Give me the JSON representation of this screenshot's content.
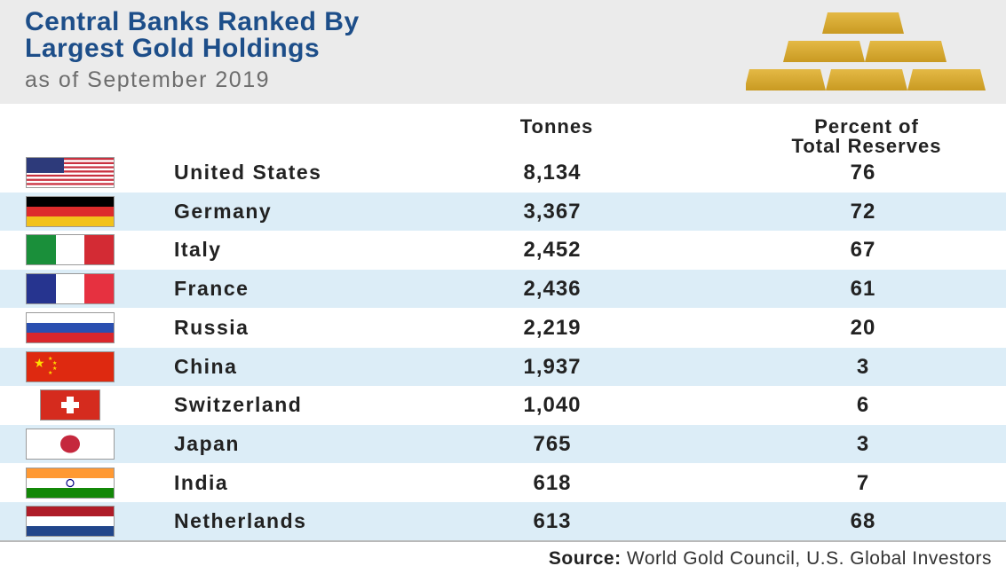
{
  "header": {
    "title_line1": "Central Banks Ranked By",
    "title_line2": "Largest Gold Holdings",
    "subtitle": "as of September 2019"
  },
  "columns": {
    "tonnes": "Tonnes",
    "percent_line1": "Percent of",
    "percent_line2": "Total Reserves"
  },
  "source": {
    "label": "Source:",
    "text": " World Gold Council, U.S. Global Investors"
  },
  "colors": {
    "title": "#1d4e89",
    "gold": "#d4a62e",
    "row_alt": "#dcedf7"
  },
  "chart_data": {
    "type": "table",
    "title": "Central Banks Ranked By Largest Gold Holdings",
    "subtitle": "as of September 2019",
    "columns": [
      "Tonnes",
      "Percent of Total Reserves"
    ],
    "rows": [
      {
        "country": "United States",
        "flag": "us-flag-icon",
        "tonnes": "8,134",
        "percent": "76"
      },
      {
        "country": "Germany",
        "flag": "germany-flag-icon",
        "tonnes": "3,367",
        "percent": "72"
      },
      {
        "country": "Italy",
        "flag": "italy-flag-icon",
        "tonnes": "2,452",
        "percent": "67"
      },
      {
        "country": "France",
        "flag": "france-flag-icon",
        "tonnes": "2,436",
        "percent": "61"
      },
      {
        "country": "Russia",
        "flag": "russia-flag-icon",
        "tonnes": "2,219",
        "percent": "20"
      },
      {
        "country": "China",
        "flag": "china-flag-icon",
        "tonnes": "1,937",
        "percent": "3"
      },
      {
        "country": "Switzerland",
        "flag": "switzerland-flag-icon",
        "tonnes": "1,040",
        "percent": "6"
      },
      {
        "country": "Japan",
        "flag": "japan-flag-icon",
        "tonnes": "765",
        "percent": "3"
      },
      {
        "country": "India",
        "flag": "india-flag-icon",
        "tonnes": "618",
        "percent": "7"
      },
      {
        "country": "Netherlands",
        "flag": "netherlands-flag-icon",
        "tonnes": "613",
        "percent": "68"
      }
    ]
  }
}
